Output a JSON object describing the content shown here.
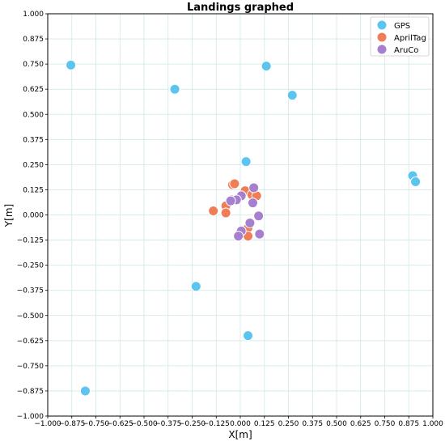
{
  "chart_data": {
    "type": "scatter",
    "title": "Landings graphed",
    "xlabel": "X[m]",
    "ylabel": "Y[m]",
    "xlim": [
      -1.0,
      1.0
    ],
    "ylim": [
      -1.0,
      1.0
    ],
    "xticks": [
      -1.0,
      -0.875,
      -0.75,
      -0.625,
      -0.5,
      -0.375,
      -0.25,
      -0.125,
      0.0,
      0.125,
      0.25,
      0.375,
      0.5,
      0.625,
      0.75,
      0.875,
      1.0
    ],
    "xtick_labels": [
      "−1.000",
      "−0.875",
      "−0.750",
      "−0.625",
      "−0.500",
      "−0.375",
      "−0.250",
      "−0.125",
      "0.000",
      "0.125",
      "0.250",
      "0.375",
      "0.500",
      "0.625",
      "0.750",
      "0.875",
      "1.000"
    ],
    "yticks": [
      1.0,
      0.875,
      0.75,
      0.625,
      0.5,
      0.375,
      0.25,
      0.125,
      0.0,
      -0.125,
      -0.25,
      -0.375,
      -0.5,
      -0.625,
      -0.75,
      -0.875,
      -1.0
    ],
    "ytick_labels": [
      "1.000",
      "0.875",
      "0.750",
      "0.625",
      "0.500",
      "0.375",
      "0.250",
      "0.125",
      "0.000",
      "−0.125",
      "−0.250",
      "−0.375",
      "−0.500",
      "−0.625",
      "−0.750",
      "−0.875",
      "−1.000"
    ],
    "grid": true,
    "legend_position": "top-right",
    "series": [
      {
        "name": "GPS",
        "color": "#5bc4ef",
        "points": [
          [
            -0.88,
            0.745
          ],
          [
            -0.34,
            0.625
          ],
          [
            0.135,
            0.74
          ],
          [
            0.27,
            0.595
          ],
          [
            0.03,
            0.265
          ],
          [
            0.895,
            0.195
          ],
          [
            0.91,
            0.165
          ],
          [
            -0.23,
            -0.355
          ],
          [
            0.04,
            -0.6
          ],
          [
            -0.805,
            -0.875
          ]
        ]
      },
      {
        "name": "AprilTag",
        "color": "#ef7d56",
        "points": [
          [
            -0.14,
            0.02
          ],
          [
            -0.075,
            0.045
          ],
          [
            -0.075,
            0.01
          ],
          [
            -0.04,
            0.15
          ],
          [
            -0.03,
            0.155
          ],
          [
            0.025,
            0.12
          ],
          [
            0.06,
            0.1
          ],
          [
            0.085,
            0.095
          ],
          [
            0.04,
            -0.065
          ],
          [
            0.04,
            -0.105
          ],
          [
            -0.045,
            0.075
          ]
        ]
      },
      {
        "name": "AruCo",
        "color": "#a77fcf",
        "points": [
          [
            0.07,
            0.135
          ],
          [
            0.065,
            0.06
          ],
          [
            0.005,
            0.095
          ],
          [
            -0.02,
            0.075
          ],
          [
            -0.05,
            0.07
          ],
          [
            0.095,
            -0.005
          ],
          [
            0.05,
            -0.04
          ],
          [
            0.005,
            -0.08
          ],
          [
            -0.01,
            -0.105
          ],
          [
            0.1,
            -0.095
          ]
        ]
      }
    ]
  }
}
